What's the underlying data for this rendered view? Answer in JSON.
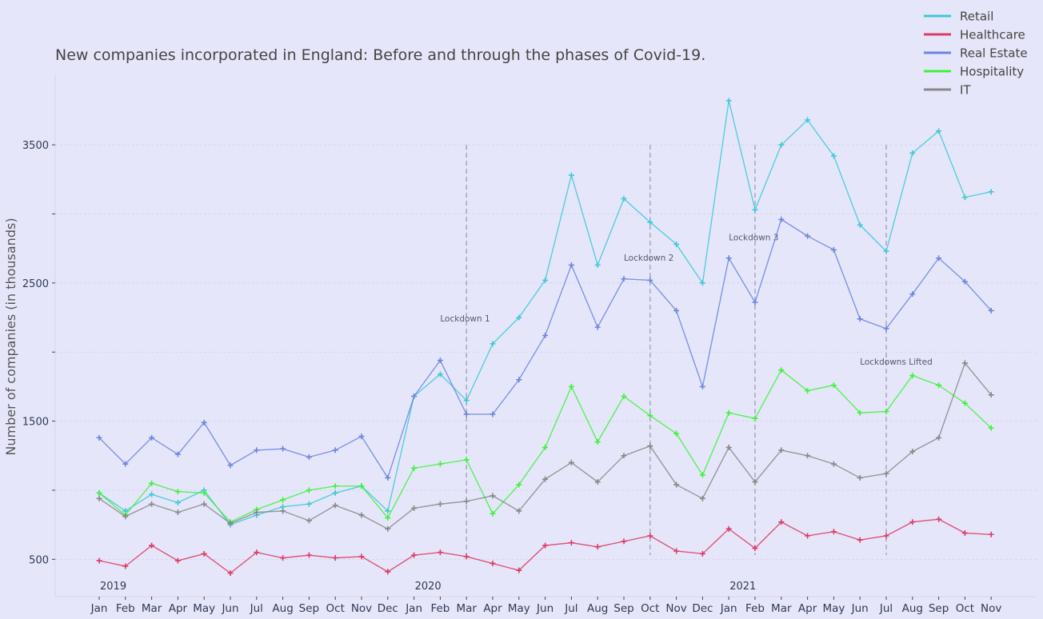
{
  "chart_data": {
    "type": "line",
    "title": "New companies incorporated in England: Before and through the phases of Covid-19.",
    "ylabel": "Number of companies (in thousands)",
    "xlabel": "",
    "ylim": [
      230,
      4010
    ],
    "y_ticks": [
      500,
      1500,
      2500,
      3500
    ],
    "year_labels": [
      {
        "label": "2019",
        "start_index": 0
      },
      {
        "label": "2020",
        "start_index": 12
      },
      {
        "label": "2021",
        "start_index": 24
      }
    ],
    "categories": [
      "Jan",
      "Feb",
      "Mar",
      "Apr",
      "May",
      "Jun",
      "Jul",
      "Aug",
      "Sep",
      "Oct",
      "Nov",
      "Dec",
      "Jan",
      "Feb",
      "Mar",
      "Apr",
      "May",
      "Jun",
      "Jul",
      "Aug",
      "Sep",
      "Oct",
      "Nov",
      "Dec",
      "Jan",
      "Feb",
      "Mar",
      "Apr",
      "May",
      "Jun",
      "Jul",
      "Aug",
      "Sep",
      "Oct",
      "Nov"
    ],
    "legend_position": "top-right",
    "grid": true,
    "series": [
      {
        "name": "Retail",
        "color": "#3ec9d3",
        "values": [
          980,
          850,
          970,
          910,
          1000,
          750,
          820,
          880,
          900,
          980,
          1030,
          850,
          1680,
          1840,
          1650,
          2060,
          2250,
          2520,
          3280,
          2630,
          3110,
          2940,
          2780,
          2500,
          3820,
          3030,
          3500,
          3680,
          3420,
          2920,
          2730,
          3440,
          3600,
          3120,
          3160
        ]
      },
      {
        "name": "Healthcare",
        "color": "#dc3a63",
        "values": [
          490,
          450,
          600,
          490,
          540,
          400,
          550,
          510,
          530,
          510,
          520,
          410,
          530,
          550,
          520,
          470,
          420,
          600,
          620,
          590,
          630,
          670,
          560,
          540,
          720,
          580,
          770,
          670,
          700,
          640,
          670,
          770,
          790,
          690,
          680
        ]
      },
      {
        "name": "Real Estate",
        "color": "#6a86de",
        "values": [
          1380,
          1190,
          1380,
          1260,
          1490,
          1180,
          1290,
          1300,
          1240,
          1290,
          1390,
          1090,
          1680,
          1940,
          1550,
          1550,
          1800,
          2120,
          2630,
          2180,
          2530,
          2520,
          2300,
          1750,
          2680,
          2360,
          2960,
          2840,
          2740,
          2240,
          2170,
          2420,
          2680,
          2510,
          2300
        ]
      },
      {
        "name": "Hospitality",
        "color": "#3ef23c",
        "values": [
          980,
          820,
          1050,
          990,
          980,
          770,
          860,
          930,
          1000,
          1030,
          1030,
          800,
          1160,
          1190,
          1220,
          830,
          1040,
          1310,
          1750,
          1350,
          1680,
          1540,
          1410,
          1110,
          1560,
          1520,
          1870,
          1720,
          1760,
          1560,
          1570,
          1830,
          1760,
          1630,
          1450
        ]
      },
      {
        "name": "IT",
        "color": "#888888",
        "values": [
          940,
          810,
          900,
          840,
          900,
          760,
          840,
          850,
          780,
          890,
          820,
          720,
          870,
          900,
          920,
          960,
          850,
          1080,
          1200,
          1060,
          1250,
          1320,
          1040,
          940,
          1310,
          1060,
          1290,
          1250,
          1190,
          1090,
          1120,
          1280,
          1380,
          1920,
          1690
        ]
      }
    ],
    "annotations": [
      {
        "text": "Lockdown 1",
        "line_index": 14,
        "label_index": 13.0,
        "label_y": 2220
      },
      {
        "text": "Lockdown 2",
        "line_index": 21,
        "label_index": 20.0,
        "label_y": 2660
      },
      {
        "text": "Lockdown 3",
        "line_index": 25,
        "label_index": 24.0,
        "label_y": 2810
      },
      {
        "text": "Lockdowns Lifted",
        "line_index": 30,
        "label_index": 29.0,
        "label_y": 1910
      }
    ],
    "annotation_line_range": [
      530,
      3500
    ]
  }
}
